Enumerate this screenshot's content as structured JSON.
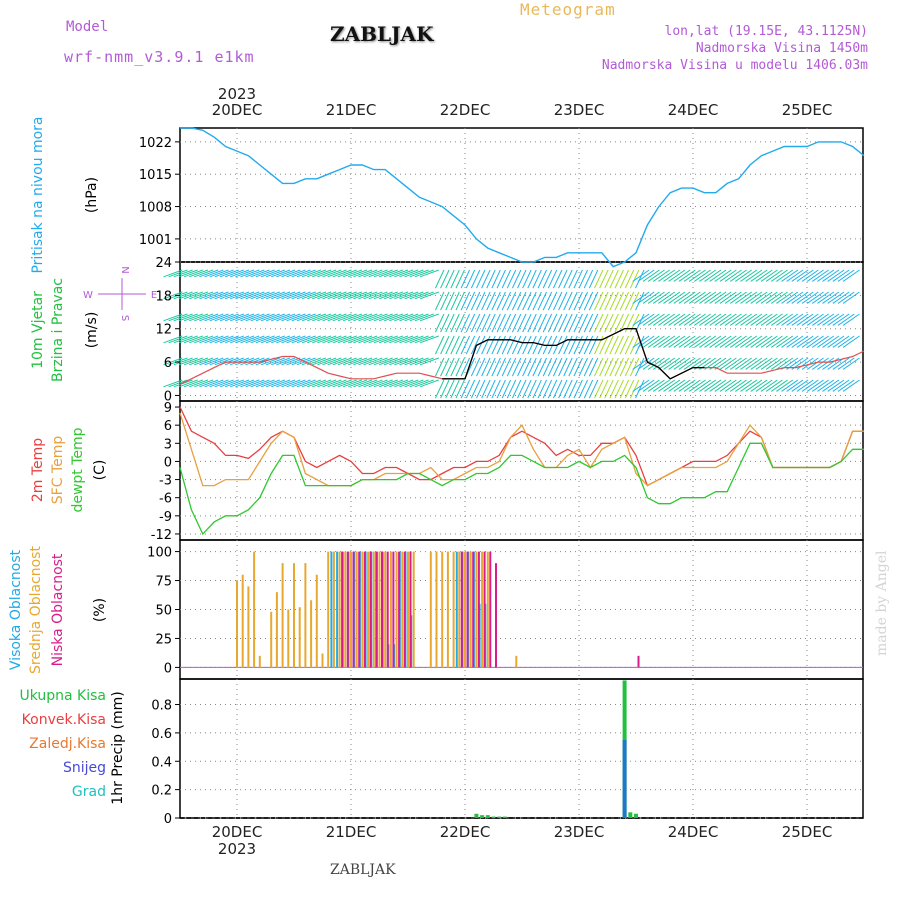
{
  "header": {
    "model_label": "Model",
    "model_name": "wrf-nmm_v3.9.1  e1km",
    "station": "ZABLJAK",
    "product": "Meteogram",
    "location": "lon,lat (19.15E, 43.1125N)",
    "elevation": "Nadmorska Visina 1450m",
    "model_elevation": "Nadmorska Visina u modelu 1406.03m",
    "colors": {
      "model": "#b35ad6",
      "product": "#e8b85a",
      "right": "#b35ad6"
    }
  },
  "footer": {
    "station": "ZABLJAK",
    "credit": "made by Angel"
  },
  "chart_data": [
    {
      "type": "line",
      "panel": "pressure",
      "ylabel": "Pritisak na nivou mora",
      "unit": "(hPa)",
      "yticks": [
        1001,
        1008,
        1015,
        1022
      ],
      "ylim": [
        996,
        1025
      ],
      "x_days": [
        "20DEC",
        "21DEC",
        "22DEC",
        "23DEC",
        "24DEC",
        "25DEC"
      ],
      "x_year": "2023",
      "x_range_days": [
        -0.5,
        5.5
      ],
      "series": [
        {
          "color": "#22aaee",
          "x": [
            -0.5,
            -0.4,
            -0.3,
            -0.2,
            -0.1,
            0,
            0.1,
            0.2,
            0.3,
            0.4,
            0.5,
            0.6,
            0.7,
            0.8,
            0.9,
            1.0,
            1.1,
            1.2,
            1.3,
            1.4,
            1.5,
            1.6,
            1.7,
            1.8,
            1.9,
            2.0,
            2.1,
            2.2,
            2.3,
            2.4,
            2.5,
            2.6,
            2.7,
            2.8,
            2.9,
            3.0,
            3.1,
            3.2,
            3.3,
            3.4,
            3.5,
            3.6,
            3.7,
            3.8,
            3.9,
            4.0,
            4.1,
            4.2,
            4.3,
            4.4,
            4.5,
            4.6,
            4.7,
            4.8,
            4.9,
            5.0,
            5.1,
            5.2,
            5.3,
            5.4,
            5.5
          ],
          "y": [
            1025,
            1025,
            1024.5,
            1023,
            1021,
            1020,
            1019,
            1017,
            1015,
            1013,
            1013,
            1014,
            1014,
            1015,
            1016,
            1017,
            1017,
            1016,
            1016,
            1014,
            1012,
            1010,
            1009,
            1008,
            1006,
            1004,
            1001,
            999,
            998,
            997,
            996,
            996,
            997,
            997,
            998,
            998,
            998,
            998,
            995,
            996,
            998,
            1004,
            1008,
            1011,
            1012,
            1012,
            1011,
            1011,
            1013,
            1014,
            1017,
            1019,
            1020,
            1021,
            1021,
            1021,
            1022,
            1022,
            1022,
            1021,
            1019
          ]
        }
      ]
    },
    {
      "type": "line",
      "panel": "wind",
      "ylabel": [
        "10m Vjetar",
        "Brzina i Pravac"
      ],
      "unit": "(m/s)",
      "compass": {
        "n": "N",
        "s": "S",
        "w": "W",
        "e": "E"
      },
      "yticks": [
        0,
        6,
        12,
        18,
        24
      ],
      "ylim": [
        -1,
        24
      ],
      "series": [
        {
          "name": "speed",
          "color": "#e05050",
          "x": [
            -0.5,
            -0.4,
            -0.3,
            -0.2,
            -0.1,
            0,
            0.1,
            0.2,
            0.3,
            0.4,
            0.5,
            0.6,
            0.7,
            0.8,
            0.9,
            1.0,
            1.1,
            1.2,
            1.3,
            1.4,
            1.5,
            1.6,
            1.7,
            1.8,
            1.9,
            2.0,
            2.1,
            2.2,
            2.3,
            2.4,
            2.5,
            2.6,
            2.7,
            2.8,
            2.9,
            3.0,
            3.1,
            3.2,
            3.3,
            3.4,
            3.5,
            3.6,
            3.7,
            3.8,
            3.9,
            4.0,
            4.1,
            4.2,
            4.3,
            4.4,
            4.5,
            4.6,
            4.7,
            4.8,
            4.9,
            5.0,
            5.1,
            5.2,
            5.3,
            5.4,
            5.5
          ],
          "y": [
            2,
            3,
            4,
            5,
            6,
            6,
            6,
            6,
            6.5,
            7,
            7,
            6,
            5,
            4,
            3.5,
            3,
            3,
            3,
            3.5,
            4,
            4,
            4,
            3.5,
            3,
            3,
            3,
            9,
            10,
            10,
            10,
            9.5,
            9.5,
            9,
            9,
            10,
            10,
            10,
            10,
            11,
            12,
            12,
            6,
            5,
            3,
            4,
            5,
            5,
            5,
            4,
            4,
            4,
            4,
            4.5,
            5,
            5,
            5.5,
            6,
            6,
            6.5,
            7,
            8
          ]
        },
        {
          "name": "mean",
          "color": "#000000",
          "x": [
            1.8,
            1.9,
            2.0,
            2.1,
            2.2,
            2.3,
            2.4,
            2.5,
            2.6,
            2.7,
            2.8,
            2.9,
            3.0,
            3.1,
            3.2,
            3.3,
            3.4,
            3.5,
            3.6,
            3.7,
            3.8,
            3.9,
            4.0,
            4.1
          ],
          "y": [
            3,
            3,
            3,
            9,
            10,
            10,
            10,
            9.5,
            9.5,
            9,
            9,
            10,
            10,
            10,
            10,
            11,
            12,
            12,
            6,
            5,
            3,
            4,
            5,
            5
          ]
        }
      ],
      "barb_speed_bands": [
        {
          "max": 5,
          "color": "#1ec8a0"
        },
        {
          "max": 10,
          "color": "#22b4e6"
        },
        {
          "max": 15,
          "color": "#a6dc28"
        },
        {
          "max": 20,
          "color": "#22c850"
        },
        {
          "max": 99,
          "color": "#f0b43c"
        }
      ]
    },
    {
      "type": "line",
      "panel": "temperature",
      "series_labels": [
        "2m Temp",
        "SFC Temp",
        "dewpt Temp"
      ],
      "unit": "(C)",
      "yticks": [
        -12,
        -9,
        -6,
        -3,
        0,
        3,
        6,
        9
      ],
      "ylim": [
        -13,
        10
      ],
      "series": [
        {
          "name": "2m Temp",
          "color": "#e84040",
          "x": [
            -0.5,
            -0.4,
            -0.3,
            -0.2,
            -0.1,
            0,
            0.1,
            0.2,
            0.3,
            0.4,
            0.5,
            0.6,
            0.7,
            0.8,
            0.9,
            1.0,
            1.1,
            1.2,
            1.3,
            1.4,
            1.5,
            1.6,
            1.7,
            1.8,
            1.9,
            2.0,
            2.1,
            2.2,
            2.3,
            2.4,
            2.5,
            2.6,
            2.7,
            2.8,
            2.9,
            3.0,
            3.1,
            3.2,
            3.3,
            3.4,
            3.5,
            3.6,
            3.7,
            3.8,
            3.9,
            4.0,
            4.1,
            4.2,
            4.3,
            4.4,
            4.5,
            4.6,
            4.7,
            4.8,
            4.9,
            5.0,
            5.1,
            5.2,
            5.3,
            5.4,
            5.5
          ],
          "y": [
            9,
            5,
            4,
            3,
            1,
            1,
            0.5,
            2,
            4,
            5,
            4,
            0,
            -1,
            0,
            1,
            0,
            -2,
            -2,
            -1,
            -1,
            -2,
            -3,
            -3,
            -2,
            -1,
            -1,
            0,
            0,
            1,
            4,
            5,
            4,
            3,
            1,
            2,
            1,
            1,
            3,
            3,
            4,
            1,
            -4,
            -3,
            -2,
            -1,
            0,
            0,
            0,
            1,
            3,
            5,
            4,
            -1,
            -1,
            -1,
            -1,
            -1,
            -1,
            0,
            5,
            5
          ]
        },
        {
          "name": "SFC Temp",
          "color": "#e8a040",
          "x": [
            -0.5,
            -0.4,
            -0.3,
            -0.2,
            -0.1,
            0,
            0.1,
            0.2,
            0.3,
            0.4,
            0.5,
            0.6,
            0.7,
            0.8,
            0.9,
            1.0,
            1.1,
            1.2,
            1.3,
            1.4,
            1.5,
            1.6,
            1.7,
            1.8,
            1.9,
            2.0,
            2.1,
            2.2,
            2.3,
            2.4,
            2.5,
            2.6,
            2.7,
            2.8,
            2.9,
            3.0,
            3.1,
            3.2,
            3.3,
            3.4,
            3.5,
            3.6,
            3.7,
            3.8,
            3.9,
            4.0,
            4.1,
            4.2,
            4.3,
            4.4,
            4.5,
            4.6,
            4.7,
            4.8,
            4.9,
            5.0,
            5.1,
            5.2,
            5.3,
            5.4,
            5.5
          ],
          "y": [
            8,
            2,
            -4,
            -4,
            -3,
            -3,
            -3,
            0,
            3,
            5,
            4,
            -2,
            -3,
            -4,
            -4,
            -4,
            -3,
            -3,
            -2,
            -2,
            -2,
            -2,
            -1,
            -3,
            -3,
            -2,
            -1,
            -1,
            0,
            4,
            6,
            2,
            -1,
            -1,
            1,
            2,
            -1,
            2,
            3,
            4,
            -2,
            -4,
            -3,
            -2,
            -1,
            -1,
            -1,
            -1,
            0,
            3,
            6,
            4,
            -1,
            -1,
            -1,
            -1,
            -1,
            -1,
            0,
            5,
            5
          ]
        },
        {
          "name": "dewpt Temp",
          "color": "#30c830",
          "x": [
            -0.5,
            -0.4,
            -0.3,
            -0.2,
            -0.1,
            0,
            0.1,
            0.2,
            0.3,
            0.4,
            0.5,
            0.6,
            0.7,
            0.8,
            0.9,
            1.0,
            1.1,
            1.2,
            1.3,
            1.4,
            1.5,
            1.6,
            1.7,
            1.8,
            1.9,
            2.0,
            2.1,
            2.2,
            2.3,
            2.4,
            2.5,
            2.6,
            2.7,
            2.8,
            2.9,
            3.0,
            3.1,
            3.2,
            3.3,
            3.4,
            3.5,
            3.6,
            3.7,
            3.8,
            3.9,
            4.0,
            4.1,
            4.2,
            4.3,
            4.4,
            4.5,
            4.6,
            4.7,
            4.8,
            4.9,
            5.0,
            5.1,
            5.2,
            5.3,
            5.4,
            5.5
          ],
          "y": [
            -1,
            -8,
            -12,
            -10,
            -9,
            -9,
            -8,
            -6,
            -2,
            1,
            1,
            -4,
            -4,
            -4,
            -4,
            -4,
            -3,
            -3,
            -3,
            -3,
            -2,
            -2,
            -3,
            -4,
            -3,
            -3,
            -2,
            -2,
            -1,
            1,
            1,
            0,
            -1,
            -1,
            -1,
            0,
            -1,
            0,
            0,
            1,
            -1,
            -6,
            -7,
            -7,
            -6,
            -6,
            -6,
            -5,
            -5,
            -1,
            3,
            3,
            -1,
            -1,
            -1,
            -1,
            -1,
            -1,
            0,
            2,
            2
          ]
        }
      ]
    },
    {
      "type": "bar",
      "panel": "cloud",
      "series_labels": [
        "Visoka Oblacnost",
        "Srednja Oblacnost",
        "Niska Oblacnost"
      ],
      "unit": "(%)",
      "yticks": [
        0,
        25,
        50,
        75,
        100
      ],
      "ylim": [
        -10,
        110
      ],
      "series": [
        {
          "name": "Visoka Oblacnost",
          "color": "#22aae6",
          "x": [
            0.85,
            0.9,
            0.95,
            1.0,
            1.05,
            1.1,
            1.15,
            1.2,
            1.25,
            1.3,
            1.35,
            1.4,
            1.45,
            1.5,
            1.55,
            1.95,
            2.0,
            2.05,
            2.1,
            2.15,
            2.2
          ],
          "y": [
            100,
            100,
            100,
            100,
            100,
            100,
            100,
            100,
            100,
            100,
            20,
            20,
            100,
            100,
            45,
            100,
            100,
            100,
            100,
            55,
            55
          ]
        },
        {
          "name": "Srednja Oblacnost",
          "color": "#e8a830",
          "x": [
            0.0,
            0.05,
            0.1,
            0.15,
            0.2,
            0.25,
            0.3,
            0.35,
            0.4,
            0.45,
            0.5,
            0.55,
            0.6,
            0.65,
            0.7,
            0.75,
            0.8,
            0.85,
            0.9,
            0.95,
            1.0,
            1.05,
            1.1,
            1.15,
            1.2,
            1.25,
            1.3,
            1.35,
            1.4,
            1.45,
            1.5,
            1.55,
            1.6,
            1.65,
            1.7,
            1.75,
            1.8,
            1.85,
            1.9,
            1.95,
            2.0,
            2.05,
            2.1,
            2.15,
            2.2,
            2.45
          ],
          "y": [
            75,
            80,
            70,
            100,
            10,
            0,
            48,
            65,
            90,
            50,
            90,
            52,
            90,
            58,
            80,
            12,
            100,
            100,
            100,
            100,
            100,
            100,
            100,
            100,
            100,
            100,
            100,
            100,
            100,
            100,
            100,
            100,
            0,
            0,
            100,
            100,
            100,
            100,
            100,
            100,
            100,
            100,
            100,
            100,
            100,
            10
          ]
        },
        {
          "name": "Niska Oblacnost",
          "color": "#d81c8c",
          "x": [
            0.9,
            0.95,
            1.0,
            1.05,
            1.1,
            1.15,
            1.2,
            1.25,
            1.3,
            1.35,
            1.4,
            1.45,
            1.5,
            1.95,
            2.0,
            2.05,
            2.1,
            2.15,
            2.2,
            2.25,
            3.5
          ],
          "y": [
            100,
            100,
            100,
            100,
            100,
            100,
            100,
            100,
            100,
            100,
            100,
            100,
            100,
            100,
            100,
            100,
            100,
            100,
            100,
            90,
            10
          ]
        }
      ]
    },
    {
      "type": "bar",
      "panel": "precip",
      "series_labels": [
        "Ukupna Kisa",
        "Konvek.Kisa",
        "Zaledj.Kisa",
        "Snijeg",
        "Grad"
      ],
      "series_colors": [
        "#22c040",
        "#e84040",
        "#e87830",
        "#4848d8",
        "#20c0c0"
      ],
      "ylabel": "1hr Precip (mm)",
      "yticks": [
        0,
        0.2,
        0.4,
        0.6,
        0.8
      ],
      "ylim": [
        0,
        0.98
      ],
      "series": [
        {
          "name": "Ukupna Kisa",
          "color": "#22c040",
          "x": [
            2.1,
            2.15,
            2.2,
            2.25,
            2.3,
            2.35,
            3.4,
            3.45,
            3.5
          ],
          "y": [
            0.03,
            0.02,
            0.02,
            0.01,
            0.01,
            0.01,
            0.97,
            0.04,
            0.03
          ]
        },
        {
          "name": "Snijeg",
          "color": "#1e78c8",
          "x": [
            3.4
          ],
          "y": [
            0.55
          ]
        }
      ]
    }
  ]
}
